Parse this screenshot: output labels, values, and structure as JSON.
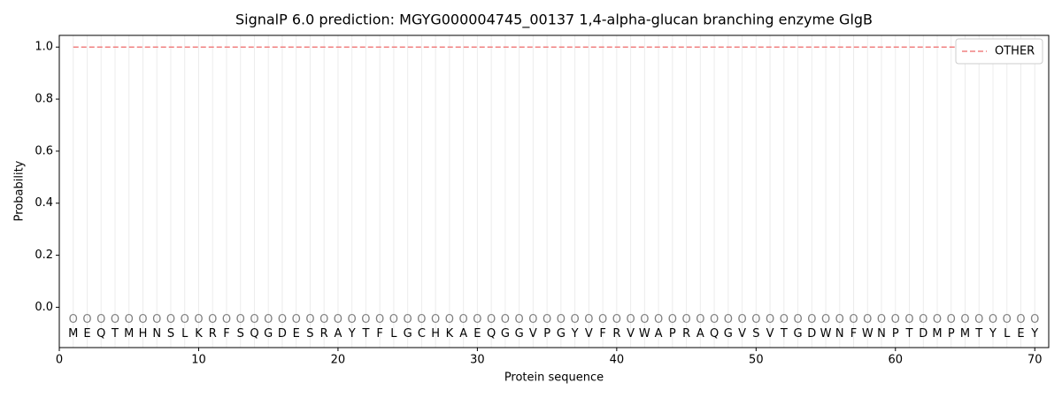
{
  "chart_data": {
    "type": "line",
    "title": "SignalP 6.0 prediction: MGYG000004745_00137 1,4-alpha-glucan branching enzyme GlgB",
    "xlabel": "Protein sequence",
    "ylabel": "Probability",
    "x": [
      1,
      2,
      3,
      4,
      5,
      6,
      7,
      8,
      9,
      10,
      11,
      12,
      13,
      14,
      15,
      16,
      17,
      18,
      19,
      20,
      21,
      22,
      23,
      24,
      25,
      26,
      27,
      28,
      29,
      30,
      31,
      32,
      33,
      34,
      35,
      36,
      37,
      38,
      39,
      40,
      41,
      42,
      43,
      44,
      45,
      46,
      47,
      48,
      49,
      50,
      51,
      52,
      53,
      54,
      55,
      56,
      57,
      58,
      59,
      60,
      61,
      62,
      63,
      64,
      65,
      66,
      67,
      68,
      69,
      70
    ],
    "sequence": [
      "M",
      "E",
      "Q",
      "T",
      "M",
      "H",
      "N",
      "S",
      "L",
      "K",
      "R",
      "F",
      "S",
      "Q",
      "G",
      "D",
      "E",
      "S",
      "R",
      "A",
      "Y",
      "T",
      "F",
      "L",
      "G",
      "C",
      "H",
      "K",
      "A",
      "E",
      "Q",
      "G",
      "G",
      "V",
      "P",
      "G",
      "Y",
      "V",
      "F",
      "R",
      "V",
      "W",
      "A",
      "P",
      "R",
      "A",
      "Q",
      "G",
      "V",
      "S",
      "V",
      "T",
      "G",
      "D",
      "W",
      "N",
      "F",
      "W",
      "N",
      "P",
      "T",
      "D",
      "M",
      "P",
      "M",
      "T",
      "Y",
      "L",
      "E",
      "Y"
    ],
    "predicted_labels": [
      "O",
      "O",
      "O",
      "O",
      "O",
      "O",
      "O",
      "O",
      "O",
      "O",
      "O",
      "O",
      "O",
      "O",
      "O",
      "O",
      "O",
      "O",
      "O",
      "O",
      "O",
      "O",
      "O",
      "O",
      "O",
      "O",
      "O",
      "O",
      "O",
      "O",
      "O",
      "O",
      "O",
      "O",
      "O",
      "O",
      "O",
      "O",
      "O",
      "O",
      "O",
      "O",
      "O",
      "O",
      "O",
      "O",
      "O",
      "O",
      "O",
      "O",
      "O",
      "O",
      "O",
      "O",
      "O",
      "O",
      "O",
      "O",
      "O",
      "O",
      "O",
      "O",
      "O",
      "O",
      "O",
      "O",
      "O",
      "O",
      "O",
      "O"
    ],
    "series": [
      {
        "name": "OTHER",
        "color": "#f08080",
        "dash": true,
        "values": [
          1,
          1,
          1,
          1,
          1,
          1,
          1,
          1,
          1,
          1,
          1,
          1,
          1,
          1,
          1,
          1,
          1,
          1,
          1,
          1,
          1,
          1,
          1,
          1,
          1,
          1,
          1,
          1,
          1,
          1,
          1,
          1,
          1,
          1,
          1,
          1,
          1,
          1,
          1,
          1,
          1,
          1,
          1,
          1,
          1,
          1,
          1,
          1,
          1,
          1,
          1,
          1,
          1,
          1,
          1,
          1,
          1,
          1,
          1,
          1,
          1,
          1,
          1,
          1,
          1,
          1,
          1,
          1,
          1,
          1
        ]
      }
    ],
    "xlim": [
      0,
      71
    ],
    "ylim": [
      -0.155,
      1.045
    ],
    "xticks": [
      0,
      10,
      20,
      30,
      40,
      50,
      60,
      70
    ],
    "yticks": [
      {
        "value": 0,
        "label": "0.0"
      },
      0.2,
      0.4,
      0.6,
      0.8,
      {
        "value": 1,
        "label": "1.0"
      }
    ],
    "grid": true,
    "legend": "upper right"
  }
}
